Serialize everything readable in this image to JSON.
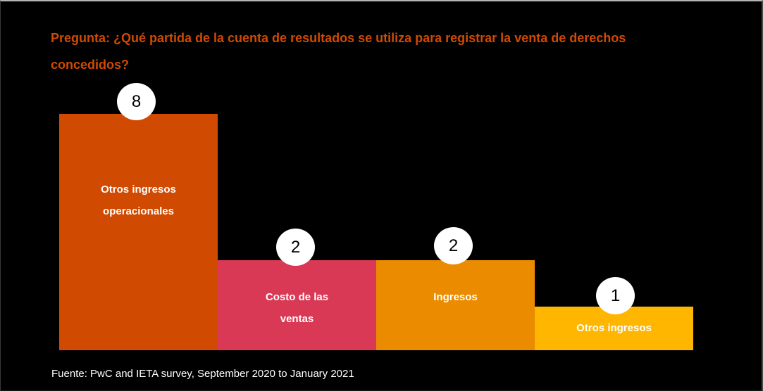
{
  "window": {
    "background_color": "#000000"
  },
  "title": {
    "lines": [
      "Pregunta: ¿Qué partida de la cuenta de resultados se utiliza para registrar la venta de derechos",
      "concedidos?"
    ],
    "color": "#D04A02"
  },
  "footer": {
    "text": "Fuente: PwC and IETA survey, September 2020 to January 2021"
  },
  "chart_data": {
    "type": "bar",
    "orientation": "vertical",
    "title": "Pregunta: ¿Qué partida de la cuenta de resultados se utiliza para registrar la venta de derechos concedidos?",
    "source": "Fuente: PwC and IETA survey, September 2020 to January 2021",
    "categories": [
      "Otros ingresos operacionales",
      "Costo de las ventas",
      "Ingresos",
      "Otros ingresos"
    ],
    "values": [
      8,
      2,
      2,
      1
    ],
    "xlabel": "",
    "ylabel": "",
    "grid": false,
    "legend": false,
    "axes_visible": false,
    "value_badge_color": "#ffffff",
    "value_text_color": "#000000",
    "label_text_color": "#ffffff",
    "bars": [
      {
        "label_line1": "Otros ingresos",
        "label_line2": "operacionales",
        "value": 8,
        "color": "#D04A02"
      },
      {
        "label_line1": "Costo de las",
        "label_line2": "ventas",
        "value": 2,
        "color": "#D93954"
      },
      {
        "label_line1": "Ingresos",
        "label_line2": "",
        "value": 2,
        "color": "#EB8C00"
      },
      {
        "label_line1": "Otros ingresos",
        "label_line2": "",
        "value": 1,
        "color": "#FFB600"
      }
    ]
  }
}
